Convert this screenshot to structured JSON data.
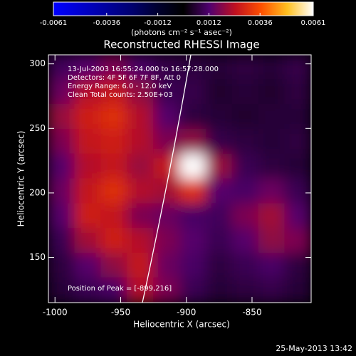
{
  "chart_data": {
    "type": "image",
    "title": "Reconstructed RHESSI Image",
    "x_label": "Heliocentric X (arcsec)",
    "y_label": "Heliocentric Y (arcsec)",
    "xlim": [
      -1005,
      -805
    ],
    "ylim": [
      115,
      307
    ],
    "xticks": [
      -1000,
      -950,
      -900,
      -850
    ],
    "yticks": [
      150,
      200,
      250,
      300
    ],
    "colorbar": {
      "lim": [
        -0.0061,
        0.0061
      ],
      "ticks": [
        -0.0061,
        -0.0036,
        -0.0012,
        0.0012,
        0.0036,
        0.0061
      ],
      "label": "(photons cm⁻² s⁻¹ asec⁻²)"
    },
    "colormap": [
      "#0000ff",
      "#0000d0",
      "#0000a0",
      "#000070",
      "#000030",
      "#000000",
      "#500070",
      "#c01020",
      "#ff5000",
      "#ffc020",
      "#ffffff"
    ],
    "annotations": [
      "13-Jul-2003 16:55:24.000 to 16:57:28.000",
      "Detectors: 4F 5F 6F 7F 8F, Att 0",
      "Energy Range: 6.0 - 12.0 keV",
      "Clean     Total counts: 2.50E+03"
    ],
    "peak_label": "Position of Peak = [-899,216]",
    "timestamp": "25-May-2013 13:42",
    "z": [
      [
        0.001,
        0.0013,
        0.0017,
        0.0011,
        0.0008,
        0.0007,
        0.0006,
        0.0007,
        0.0006,
        0.0008
      ],
      [
        0.0015,
        0.0023,
        0.0025,
        0.0019,
        0.0009,
        0.0008,
        0.0005,
        0.0006,
        0.0005,
        0.0007
      ],
      [
        0.002,
        0.0027,
        0.003,
        0.0023,
        0.0013,
        0.0007,
        0.0006,
        0.0005,
        0.0006,
        0.0006
      ],
      [
        0.0017,
        0.0025,
        0.0027,
        0.0023,
        0.0017,
        0.0019,
        0.0008,
        0.0007,
        0.0006,
        0.0007
      ],
      [
        0.0013,
        0.0023,
        0.0025,
        0.002,
        0.0025,
        0.0061,
        0.002,
        0.0009,
        0.0007,
        0.0006
      ],
      [
        0.0015,
        0.0025,
        0.003,
        0.0023,
        0.0021,
        0.003,
        0.0013,
        0.0011,
        0.0015,
        0.0009
      ],
      [
        0.0013,
        0.0027,
        0.0025,
        0.0017,
        0.0015,
        0.0011,
        0.001,
        0.0017,
        0.0021,
        0.0013
      ],
      [
        0.0009,
        0.0021,
        0.0027,
        0.0023,
        0.0017,
        0.0013,
        0.0009,
        0.0013,
        0.0019,
        0.0017
      ],
      [
        0.0007,
        0.0013,
        0.0019,
        0.0025,
        0.0015,
        0.0011,
        0.0007,
        0.0009,
        0.0011,
        0.0007
      ],
      [
        0.0006,
        0.0009,
        0.0011,
        0.0023,
        0.0017,
        0.0009,
        0.0006,
        0.0007,
        0.0008,
        0.0006
      ]
    ]
  }
}
